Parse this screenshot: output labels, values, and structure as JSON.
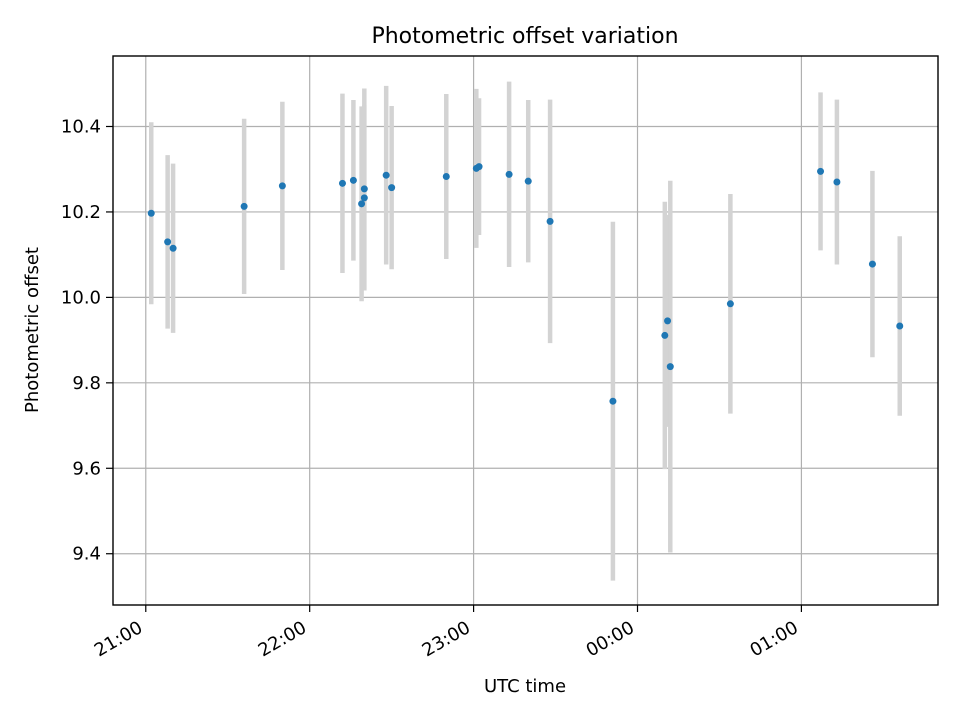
{
  "chart_data": {
    "type": "scatter",
    "title": "Photometric offset variation",
    "xlabel": "UTC time",
    "ylabel": "Photometric offset",
    "x_axis": "time",
    "xlim": [
      "20:48",
      "01:50"
    ],
    "ylim": [
      9.28,
      10.565
    ],
    "x_ticks": [
      "21:00",
      "22:00",
      "23:00",
      "00:00",
      "01:00"
    ],
    "y_ticks": [
      "9.4",
      "9.6",
      "9.8",
      "10.0",
      "10.2",
      "10.4"
    ],
    "grid": true,
    "colors": {
      "point": "#1f77b4",
      "errorbar": "#d3d3d3",
      "grid": "#b0b0b0"
    },
    "series": [
      {
        "points": [
          {
            "x": "21:02",
            "y": 10.197,
            "err": 0.213
          },
          {
            "x": "21:08",
            "y": 10.13,
            "err": 0.203
          },
          {
            "x": "21:10",
            "y": 10.115,
            "err": 0.198
          },
          {
            "x": "21:36",
            "y": 10.213,
            "err": 0.205
          },
          {
            "x": "21:50",
            "y": 10.261,
            "err": 0.197
          },
          {
            "x": "22:12",
            "y": 10.267,
            "err": 0.21
          },
          {
            "x": "22:16",
            "y": 10.274,
            "err": 0.188
          },
          {
            "x": "22:19",
            "y": 10.219,
            "err": 0.228
          },
          {
            "x": "22:20",
            "y": 10.233,
            "err": 0.217
          },
          {
            "x": "22:20",
            "y": 10.254,
            "err": 0.235
          },
          {
            "x": "22:28",
            "y": 10.286,
            "err": 0.209
          },
          {
            "x": "22:30",
            "y": 10.257,
            "err": 0.191
          },
          {
            "x": "22:50",
            "y": 10.283,
            "err": 0.193
          },
          {
            "x": "23:01",
            "y": 10.302,
            "err": 0.186
          },
          {
            "x": "23:02",
            "y": 10.306,
            "err": 0.16
          },
          {
            "x": "23:13",
            "y": 10.288,
            "err": 0.217
          },
          {
            "x": "23:20",
            "y": 10.272,
            "err": 0.19
          },
          {
            "x": "23:28",
            "y": 10.178,
            "err": 0.285
          },
          {
            "x": "23:51",
            "y": 9.757,
            "err": 0.42
          },
          {
            "x": "00:10",
            "y": 9.911,
            "err": 0.313
          },
          {
            "x": "00:11",
            "y": 9.945,
            "err": 0.248
          },
          {
            "x": "00:12",
            "y": 9.838,
            "err": 0.435
          },
          {
            "x": "00:34",
            "y": 9.985,
            "err": 0.257
          },
          {
            "x": "01:07",
            "y": 10.295,
            "err": 0.185
          },
          {
            "x": "01:13",
            "y": 10.27,
            "err": 0.193
          },
          {
            "x": "01:26",
            "y": 10.078,
            "err": 0.218
          },
          {
            "x": "01:36",
            "y": 9.933,
            "err": 0.21
          }
        ]
      }
    ]
  }
}
